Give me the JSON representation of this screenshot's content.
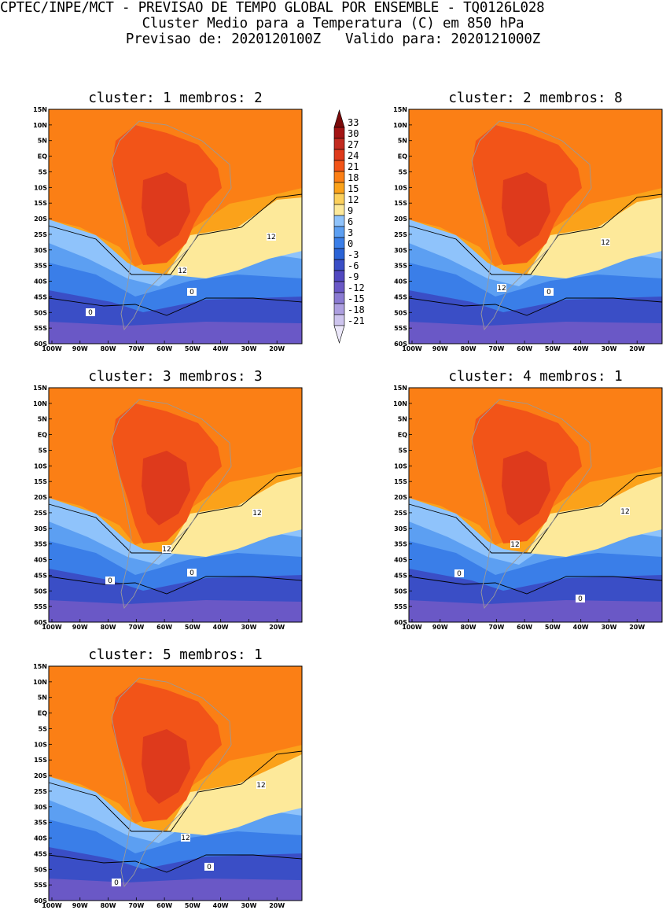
{
  "header": {
    "line1": "CPTEC/INPE/MCT - PREVISAO DE TEMPO GLOBAL POR ENSEMBLE - TQ0126L028",
    "line2": "Cluster Medio para a Temperatura (C) em 850 hPa",
    "line3": "Previsao de: 2020120100Z   Valido para: 2020121000Z"
  },
  "panels": [
    {
      "title": "cluster: 1  membros: 2",
      "labels": [
        "12",
        "12",
        "0",
        "0"
      ]
    },
    {
      "title": "cluster: 2  membros: 8",
      "labels": [
        "12",
        "12",
        "0"
      ]
    },
    {
      "title": "cluster: 3  membros: 3",
      "labels": [
        "12",
        "12",
        "0",
        "0"
      ]
    },
    {
      "title": "cluster: 4  membros: 1",
      "labels": [
        "12",
        "12",
        "0",
        "0"
      ]
    },
    {
      "title": "cluster: 5  membros: 1",
      "labels": [
        "12",
        "12",
        "0",
        "0"
      ]
    }
  ],
  "axes": {
    "lat_labels": [
      "15N",
      "10N",
      "5N",
      "EQ",
      "5S",
      "10S",
      "15S",
      "20S",
      "25S",
      "30S",
      "35S",
      "40S",
      "45S",
      "50S",
      "55S",
      "60S"
    ],
    "lon_labels": [
      "100W",
      "90W",
      "80W",
      "70W",
      "60W",
      "50W",
      "40W",
      "30W",
      "20W"
    ]
  },
  "colorbar": {
    "labels": [
      "33",
      "30",
      "27",
      "24",
      "21",
      "18",
      "15",
      "12",
      "9",
      "6",
      "3",
      "0",
      "-3",
      "-6",
      "-9",
      "-12",
      "-15",
      "-18",
      "-21"
    ],
    "colors": [
      "#7a0a0a",
      "#a31414",
      "#c22b20",
      "#de3a1c",
      "#f25418",
      "#fb7f15",
      "#fba21a",
      "#fcd05c",
      "#fde99a",
      "#8fc3fb",
      "#5c9ff2",
      "#3a7ee8",
      "#2a63d6",
      "#3a4ec6",
      "#5148c0",
      "#6a58c6",
      "#8a7ad2",
      "#ad9fe0",
      "#cdc4ee",
      "#ece8fa"
    ]
  }
}
